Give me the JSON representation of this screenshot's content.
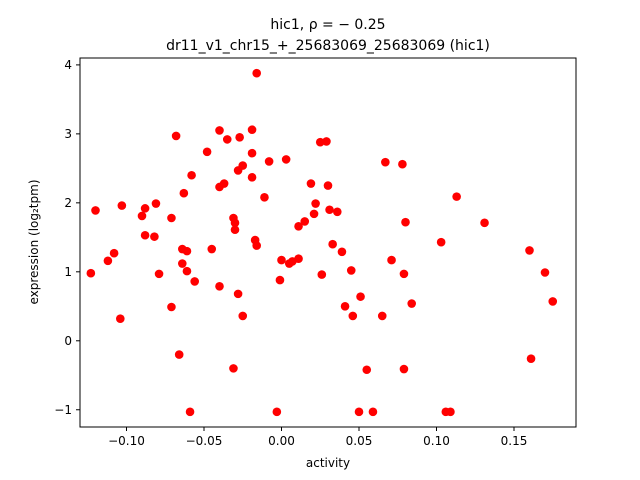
{
  "chart_data": {
    "type": "scatter",
    "title": [
      "hic1, ρ = − 0.25",
      "dr11_v1_chr15_+_25683069_25683069 (hic1)"
    ],
    "xlabel": "activity",
    "ylabel": "expression (log₂tpm)",
    "xlim": [
      -0.13,
      0.19
    ],
    "ylim": [
      -1.25,
      4.1
    ],
    "xticks": [
      -0.1,
      -0.05,
      0.0,
      0.05,
      0.1,
      0.15
    ],
    "xtick_labels": [
      "−0.10",
      "−0.05",
      "0.00",
      "0.05",
      "0.10",
      "0.15"
    ],
    "yticks": [
      -1,
      0,
      1,
      2,
      3,
      4
    ],
    "ytick_labels": [
      "−1",
      "0",
      "1",
      "2",
      "3",
      "4"
    ],
    "grid": false,
    "marker_color": "#ff0000",
    "series": [
      {
        "points": [
          [
            -0.123,
            0.98
          ],
          [
            -0.12,
            1.89
          ],
          [
            -0.112,
            1.16
          ],
          [
            -0.108,
            1.27
          ],
          [
            -0.104,
            0.32
          ],
          [
            -0.103,
            1.96
          ],
          [
            -0.09,
            1.81
          ],
          [
            -0.088,
            1.92
          ],
          [
            -0.088,
            1.53
          ],
          [
            -0.082,
            1.51
          ],
          [
            -0.081,
            1.99
          ],
          [
            -0.079,
            0.97
          ],
          [
            -0.071,
            1.78
          ],
          [
            -0.071,
            0.49
          ],
          [
            -0.068,
            2.97
          ],
          [
            -0.066,
            -0.2
          ],
          [
            -0.064,
            1.33
          ],
          [
            -0.064,
            1.12
          ],
          [
            -0.063,
            2.14
          ],
          [
            -0.061,
            1.01
          ],
          [
            -0.061,
            1.3
          ],
          [
            -0.059,
            -1.03
          ],
          [
            -0.058,
            2.4
          ],
          [
            -0.056,
            0.86
          ],
          [
            -0.048,
            2.74
          ],
          [
            -0.045,
            1.33
          ],
          [
            -0.04,
            3.05
          ],
          [
            -0.04,
            2.23
          ],
          [
            -0.04,
            0.79
          ],
          [
            -0.037,
            2.28
          ],
          [
            -0.035,
            2.92
          ],
          [
            -0.031,
            1.78
          ],
          [
            -0.031,
            -0.4
          ],
          [
            -0.03,
            1.71
          ],
          [
            -0.03,
            1.61
          ],
          [
            -0.028,
            2.47
          ],
          [
            -0.028,
            0.68
          ],
          [
            -0.027,
            2.95
          ],
          [
            -0.025,
            2.54
          ],
          [
            -0.025,
            0.36
          ],
          [
            -0.019,
            3.06
          ],
          [
            -0.019,
            2.72
          ],
          [
            -0.019,
            2.37
          ],
          [
            -0.017,
            1.46
          ],
          [
            -0.016,
            1.38
          ],
          [
            -0.016,
            3.88
          ],
          [
            -0.011,
            2.08
          ],
          [
            -0.008,
            2.6
          ],
          [
            -0.003,
            -1.03
          ],
          [
            -0.001,
            0.88
          ],
          [
            0.0,
            1.17
          ],
          [
            0.003,
            2.63
          ],
          [
            0.005,
            1.12
          ],
          [
            0.007,
            1.15
          ],
          [
            0.011,
            1.66
          ],
          [
            0.011,
            1.19
          ],
          [
            0.015,
            1.73
          ],
          [
            0.019,
            2.28
          ],
          [
            0.021,
            1.84
          ],
          [
            0.022,
            1.99
          ],
          [
            0.025,
            2.88
          ],
          [
            0.026,
            0.96
          ],
          [
            0.029,
            2.89
          ],
          [
            0.03,
            2.25
          ],
          [
            0.031,
            1.9
          ],
          [
            0.033,
            1.4
          ],
          [
            0.036,
            1.87
          ],
          [
            0.039,
            1.29
          ],
          [
            0.041,
            0.5
          ],
          [
            0.045,
            1.02
          ],
          [
            0.046,
            0.36
          ],
          [
            0.05,
            -1.03
          ],
          [
            0.051,
            0.64
          ],
          [
            0.055,
            -0.42
          ],
          [
            0.059,
            -1.03
          ],
          [
            0.065,
            0.36
          ],
          [
            0.067,
            2.59
          ],
          [
            0.071,
            1.17
          ],
          [
            0.078,
            2.56
          ],
          [
            0.079,
            0.97
          ],
          [
            0.079,
            -0.41
          ],
          [
            0.08,
            1.72
          ],
          [
            0.084,
            0.54
          ],
          [
            0.103,
            1.43
          ],
          [
            0.106,
            -1.03
          ],
          [
            0.109,
            -1.03
          ],
          [
            0.113,
            2.09
          ],
          [
            0.131,
            1.71
          ],
          [
            0.16,
            1.31
          ],
          [
            0.161,
            -0.26
          ],
          [
            0.17,
            0.99
          ],
          [
            0.175,
            0.57
          ]
        ]
      }
    ]
  }
}
